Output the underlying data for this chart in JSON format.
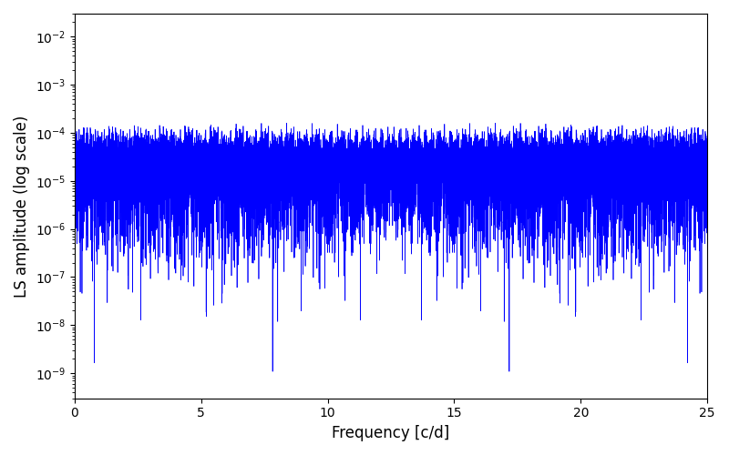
{
  "xlabel": "Frequency [c/d]",
  "ylabel": "LS amplitude (log scale)",
  "xlim": [
    0,
    25
  ],
  "ylim": [
    3e-10,
    0.03
  ],
  "line_color": "#0000ff",
  "line_width": 0.5,
  "figsize": [
    8.0,
    5.0
  ],
  "dpi": 100,
  "n_points": 15000,
  "freq_max": 25.0,
  "seed": 42
}
